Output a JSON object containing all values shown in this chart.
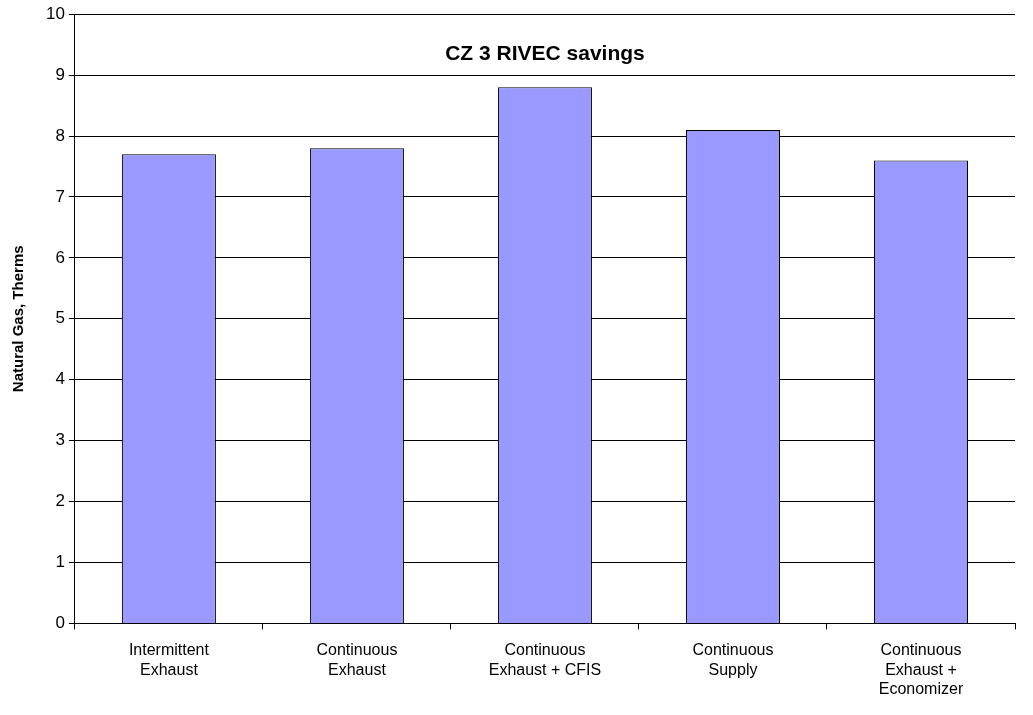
{
  "chart_data": {
    "type": "bar",
    "title": "CZ 3 RIVEC savings",
    "ylabel": "Natural Gas, Therms",
    "categories": [
      "Intermittent Exhaust",
      "Continuous Exhaust",
      "Continuous Exhaust + CFIS",
      "Continuous Supply",
      "Continuous Exhaust + Economizer"
    ],
    "values": [
      7.7,
      7.8,
      8.8,
      8.1,
      7.6
    ],
    "color": "#9999ff",
    "ylim": [
      0,
      10
    ],
    "yticks": [
      0,
      1,
      2,
      3,
      4,
      5,
      6,
      7,
      8,
      9,
      10
    ],
    "grid": "y",
    "legend": false
  }
}
